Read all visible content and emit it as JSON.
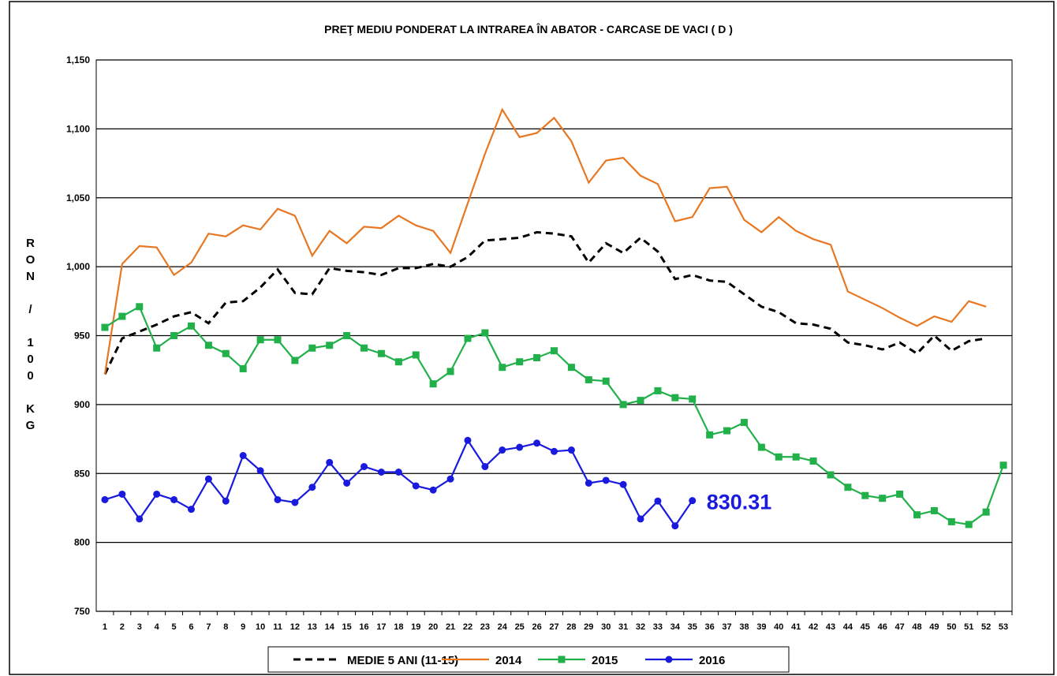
{
  "chart_data": {
    "type": "line",
    "title": "PREŢ MEDIU PONDERAT LA INTRAREA ÎN ABATOR - CARCASE DE VACI ( D )",
    "y_label": "RON / 100 KG",
    "categories": [
      "1",
      "2",
      "3",
      "4",
      "5",
      "6",
      "7",
      "8",
      "9",
      "10",
      "11",
      "12",
      "13",
      "14",
      "15",
      "16",
      "17",
      "18",
      "19",
      "20",
      "21",
      "22",
      "23",
      "24",
      "25",
      "26",
      "27",
      "28",
      "29",
      "30",
      "31",
      "32",
      "33",
      "34",
      "35",
      "36",
      "37",
      "38",
      "39",
      "40",
      "41",
      "42",
      "43",
      "44",
      "45",
      "46",
      "47",
      "48",
      "49",
      "50",
      "51",
      "52",
      "53"
    ],
    "ylim": [
      750,
      1150
    ],
    "yticks": [
      750,
      800,
      850,
      900,
      950,
      {
        "value": 1000,
        "label": "1,000"
      },
      {
        "value": 1050,
        "label": "1,050"
      },
      {
        "value": 1100,
        "label": "1,100"
      },
      {
        "value": 1150,
        "label": "1,150"
      }
    ],
    "grid": true,
    "series": [
      {
        "name": "MEDIE 5 ANI (11-15)",
        "color": "#000000",
        "dash": true,
        "marker": null,
        "values": [
          922,
          948,
          953,
          958,
          964,
          967,
          959,
          974,
          975,
          985,
          998,
          981,
          980,
          999,
          997,
          996,
          994,
          999,
          999,
          1002,
          1000,
          1007,
          1019,
          1020,
          1021,
          1025,
          1024,
          1022,
          1003,
          1017,
          1010,
          1021,
          1011,
          991,
          994,
          990,
          989,
          980,
          971,
          967,
          959,
          958,
          955,
          945,
          943,
          940,
          945,
          937,
          950,
          939,
          946,
          948,
          null
        ]
      },
      {
        "name": "2014",
        "color": "#e87722",
        "marker": null,
        "values": [
          922,
          1002,
          1015,
          1014,
          994,
          1003,
          1024,
          1022,
          1030,
          1027,
          1042,
          1037,
          1008,
          1026,
          1017,
          1029,
          1028,
          1037,
          1030,
          1026,
          1010,
          1046,
          1082,
          1114,
          1094,
          1097,
          1108,
          1091,
          1061,
          1077,
          1079,
          1066,
          1060,
          1033,
          1036,
          1057,
          1058,
          1034,
          1025,
          1036,
          1026,
          1020,
          1016,
          982,
          976,
          970,
          963,
          957,
          964,
          960,
          975,
          971,
          null
        ]
      },
      {
        "name": "2015",
        "color": "#22b04b",
        "marker": "square",
        "values": [
          956,
          964,
          971,
          941,
          950,
          957,
          943,
          937,
          926,
          947,
          947,
          932,
          941,
          943,
          950,
          941,
          937,
          931,
          936,
          915,
          924,
          948,
          952,
          927,
          931,
          934,
          939,
          927,
          918,
          917,
          900,
          903,
          910,
          905,
          904,
          878,
          881,
          887,
          869,
          862,
          862,
          859,
          849,
          840,
          834,
          832,
          835,
          820,
          823,
          815,
          813,
          822,
          856
        ]
      },
      {
        "name": "2016",
        "color": "#1a1adf",
        "marker": "circle",
        "values": [
          831,
          835,
          817,
          835,
          831,
          824,
          846,
          830,
          863,
          852,
          831,
          829,
          840,
          858,
          843,
          855,
          851,
          851,
          841,
          838,
          846,
          874,
          855,
          867,
          869,
          872,
          866,
          867,
          843,
          845,
          842,
          817,
          830,
          812,
          830.31,
          null,
          null,
          null,
          null,
          null,
          null,
          null,
          null,
          null,
          null,
          null,
          null,
          null,
          null,
          null,
          null,
          null,
          null
        ],
        "value_labels": [
          null,
          null,
          null,
          null,
          null,
          null,
          null,
          null,
          null,
          null,
          null,
          null,
          null,
          null,
          null,
          null,
          null,
          null,
          null,
          null,
          null,
          null,
          null,
          null,
          null,
          null,
          null,
          null,
          null,
          null,
          null,
          null,
          null,
          null,
          "830.31",
          null,
          null,
          null,
          null,
          null,
          null,
          null,
          null,
          null,
          null,
          null,
          null,
          null,
          null,
          null,
          null,
          null,
          null
        ]
      }
    ]
  }
}
